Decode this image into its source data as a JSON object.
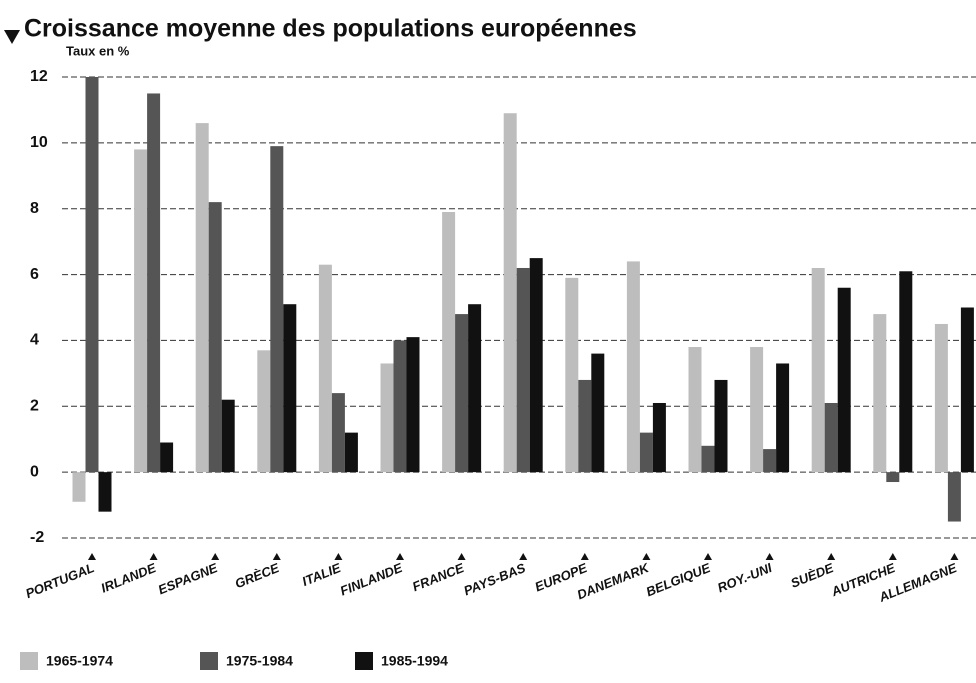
{
  "chart_data": {
    "type": "bar",
    "title": "Croissance moyenne des populations européennes",
    "y_label": "Taux en %",
    "categories": [
      "PORTUGAL",
      "IRLANDE",
      "ESPAGNE",
      "GRÈCE",
      "ITALIE",
      "FINLANDE",
      "FRANCE",
      "PAYS-BAS",
      "EUROPE",
      "DANEMARK",
      "BELGIQUE",
      "ROY.-UNI",
      "SUÈDE",
      "AUTRICHE",
      "ALLEMAGNE"
    ],
    "series": [
      {
        "name": "1965-1974",
        "color": "#bdbdbd",
        "values": [
          -0.9,
          9.8,
          10.6,
          3.7,
          6.3,
          3.3,
          7.9,
          10.9,
          5.9,
          6.4,
          3.8,
          3.8,
          6.2,
          4.8,
          4.5
        ]
      },
      {
        "name": "1975-1984",
        "color": "#555555",
        "values": [
          12,
          11.5,
          8.2,
          9.9,
          2.4,
          4.0,
          4.8,
          6.2,
          2.8,
          1.2,
          0.8,
          0.7,
          2.1,
          -0.3,
          -1.5
        ]
      },
      {
        "name": "1985-1994",
        "color": "#111111",
        "values": [
          -1.2,
          0.9,
          2.2,
          5.1,
          1.2,
          4.1,
          5.1,
          6.5,
          3.6,
          2.1,
          2.8,
          3.3,
          5.6,
          6.1,
          5.0
        ]
      }
    ],
    "ylim": [
      -2,
      12
    ],
    "yticks": [
      -2,
      0,
      2,
      4,
      6,
      8,
      10,
      12
    ],
    "grid": true
  }
}
